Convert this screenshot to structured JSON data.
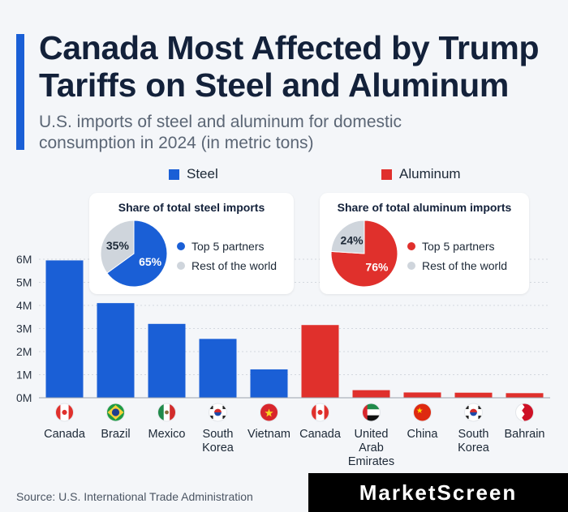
{
  "header": {
    "title": "Canada Most Affected by Trump\nTariffs on Steel and Aluminum",
    "subtitle": "U.S. imports of steel and aluminum for domestic consumption in 2024 (in metric tons)"
  },
  "legend": {
    "steel": "Steel",
    "aluminum": "Aluminum"
  },
  "colors": {
    "steel": "#1a5fd6",
    "aluminum": "#e0302c",
    "rest": "#cfd5dc",
    "accent": "#1a5fd6"
  },
  "chart_data": {
    "type": "bar",
    "title": "Canada Most Affected by Trump Tariffs on Steel and Aluminum",
    "ylabel": "metric tons",
    "ylim": [
      0,
      6000000
    ],
    "yticks": [
      0,
      1000000,
      2000000,
      3000000,
      4000000,
      5000000,
      6000000
    ],
    "ytick_labels": [
      "0M",
      "1M",
      "2M",
      "3M",
      "4M",
      "5M",
      "6M"
    ],
    "series": [
      {
        "name": "Steel",
        "color": "#1a5fd6",
        "categories": [
          "Canada",
          "Brazil",
          "Mexico",
          "South Korea",
          "Vietnam"
        ],
        "flags": [
          "ca",
          "br",
          "mx",
          "kr",
          "vn"
        ],
        "values": [
          5950000,
          4100000,
          3200000,
          2550000,
          1230000
        ]
      },
      {
        "name": "Aluminum",
        "color": "#e0302c",
        "categories": [
          "Canada",
          "United Arab Emirates",
          "China",
          "South Korea",
          "Bahrain"
        ],
        "flags": [
          "ca",
          "ae",
          "cn",
          "kr",
          "bh"
        ],
        "values": [
          3150000,
          330000,
          230000,
          220000,
          200000
        ]
      }
    ],
    "category_labels": [
      "Canada",
      "Brazil",
      "Mexico",
      "South\nKorea",
      "Vietnam",
      "Canada",
      "United\nArab\nEmirates",
      "China",
      "South\nKorea",
      "Bahrain"
    ],
    "insets": [
      {
        "title": "Share of total steel imports",
        "type": "pie",
        "top_color": "#1a5fd6",
        "slices": [
          {
            "label": "Top 5 partners",
            "value": 65,
            "text": "65%"
          },
          {
            "label": "Rest of the world",
            "value": 35,
            "text": "35%"
          }
        ]
      },
      {
        "title": "Share of total aluminum imports",
        "type": "pie",
        "top_color": "#e0302c",
        "slices": [
          {
            "label": "Top 5 partners",
            "value": 76,
            "text": "76%"
          },
          {
            "label": "Rest of the world",
            "value": 24,
            "text": "24%"
          }
        ]
      }
    ]
  },
  "footer": {
    "source": "Source: U.S. International Trade Administration",
    "brand": "MarketScreen"
  }
}
